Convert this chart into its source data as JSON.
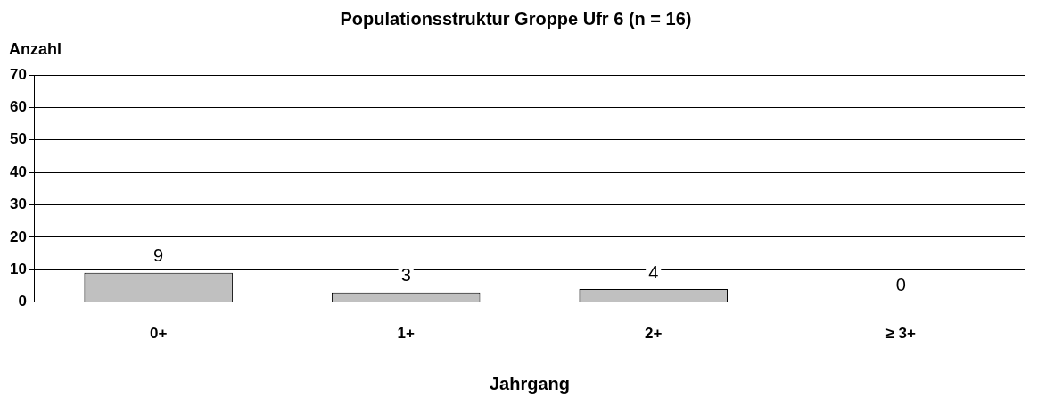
{
  "chart_data": {
    "type": "bar",
    "title": "Populationsstruktur Groppe Ufr 6 (n = 16)",
    "ylabel": "Anzahl",
    "xlabel": "Jahrgang",
    "categories": [
      "0+",
      "1+",
      "2+",
      "≥ 3+"
    ],
    "values": [
      9,
      3,
      4,
      0
    ],
    "color": "#c0c0c0",
    "ylim": [
      0,
      70
    ],
    "yticks": [
      0,
      10,
      20,
      30,
      40,
      50,
      60,
      70
    ],
    "grid": "y",
    "data_labels": true
  }
}
